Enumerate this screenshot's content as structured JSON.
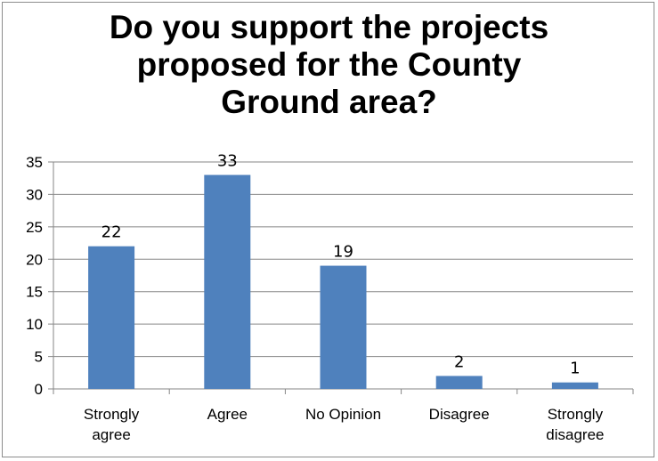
{
  "chart_data": {
    "type": "bar",
    "title_lines": [
      "Do you support the projects",
      "proposed for the County",
      "Ground area?"
    ],
    "categories": [
      [
        "Strongly",
        "agree"
      ],
      [
        "Agree"
      ],
      [
        "No Opinion"
      ],
      [
        "Disagree"
      ],
      [
        "Strongly",
        "disagree"
      ]
    ],
    "values": [
      22,
      33,
      19,
      2,
      1
    ],
    "data_labels": [
      "22",
      "33",
      "19",
      "2",
      "1"
    ],
    "ylim": [
      0,
      35
    ],
    "yticks": [
      0,
      5,
      10,
      15,
      20,
      25,
      30,
      35
    ],
    "grid": true,
    "legend": "none",
    "bar_color": "#4f81bd",
    "grid_color": "#868686"
  }
}
